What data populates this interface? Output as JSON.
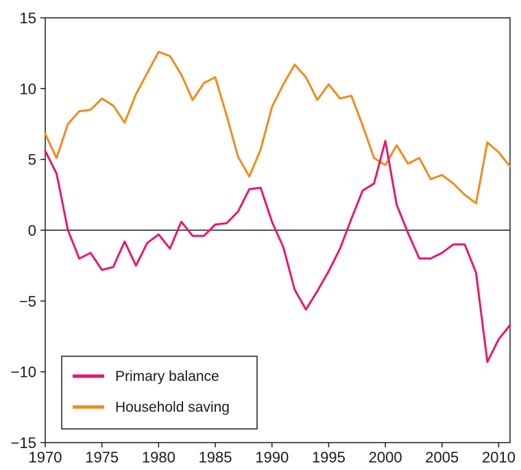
{
  "chart_data": {
    "type": "line",
    "title": "",
    "xlabel": "",
    "ylabel": "",
    "xlim": [
      1970,
      2011
    ],
    "ylim": [
      -15,
      15
    ],
    "x_ticks": [
      1970,
      1975,
      1980,
      1985,
      1990,
      1995,
      2000,
      2005,
      2010
    ],
    "y_ticks": [
      15,
      10,
      5,
      0,
      -5,
      -10,
      -15
    ],
    "y_tick_labels": [
      "15",
      "10",
      "5",
      "0",
      "−5",
      "−10",
      "−15"
    ],
    "zero_line": true,
    "grid": false,
    "legend_position": "bottom-left",
    "x": [
      1970,
      1971,
      1972,
      1973,
      1974,
      1975,
      1976,
      1977,
      1978,
      1979,
      1980,
      1981,
      1982,
      1983,
      1984,
      1985,
      1986,
      1987,
      1988,
      1989,
      1990,
      1991,
      1992,
      1993,
      1994,
      1995,
      1996,
      1997,
      1998,
      1999,
      2000,
      2001,
      2002,
      2003,
      2004,
      2005,
      2006,
      2007,
      2008,
      2009,
      2010,
      2011
    ],
    "series": [
      {
        "name": "Primary balance",
        "color": "#e6186e",
        "values": [
          5.6,
          4.0,
          0.0,
          -2.0,
          -1.6,
          -2.8,
          -2.6,
          -0.8,
          -2.5,
          -0.9,
          -0.3,
          -1.3,
          0.6,
          -0.4,
          -0.4,
          0.4,
          0.5,
          1.3,
          2.9,
          3.0,
          0.6,
          -1.2,
          -4.2,
          -5.6,
          -4.3,
          -2.9,
          -1.3,
          0.8,
          2.8,
          3.3,
          6.3,
          1.8,
          -0.2,
          -2.0,
          -2.0,
          -1.6,
          -1.0,
          -1.0,
          -3.0,
          -9.3,
          -7.7,
          -6.7
        ]
      },
      {
        "name": "Household saving",
        "color": "#f08a1e",
        "values": [
          6.8,
          5.1,
          7.5,
          8.4,
          8.5,
          9.3,
          8.8,
          7.6,
          9.6,
          11.1,
          12.6,
          12.3,
          11.0,
          9.2,
          10.4,
          10.8,
          8.1,
          5.2,
          3.8,
          5.7,
          8.7,
          10.3,
          11.7,
          10.8,
          9.2,
          10.3,
          9.3,
          9.5,
          7.4,
          5.1,
          4.6,
          6.0,
          4.7,
          5.1,
          3.6,
          3.9,
          3.3,
          2.5,
          1.9,
          6.2,
          5.5,
          4.5
        ]
      }
    ]
  }
}
